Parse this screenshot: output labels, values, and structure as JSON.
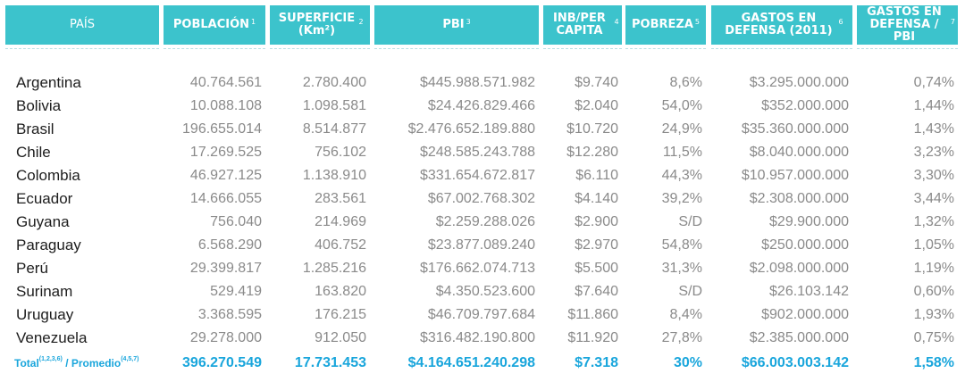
{
  "headers": [
    {
      "label": "PAÍS",
      "sup": ""
    },
    {
      "label": "POBLACIÓN",
      "sup": "1"
    },
    {
      "label": "SUPERFICIE (Km²)",
      "sup": "2"
    },
    {
      "label": "PBI",
      "sup": "3"
    },
    {
      "label": "INB/PER CAPITA",
      "sup": "4"
    },
    {
      "label": "POBREZA",
      "sup": "5"
    },
    {
      "label": "GASTOS EN DEFENSA (2011)",
      "sup": "6"
    },
    {
      "label": "GASTOS EN DEFENSA / PBI",
      "sup": "7"
    }
  ],
  "rows": [
    [
      "Argentina",
      "40.764.561",
      "2.780.400",
      "$445.988.571.982",
      "$9.740",
      "8,6%",
      "$3.295.000.000",
      "0,74%"
    ],
    [
      "Bolivia",
      "10.088.108",
      "1.098.581",
      "$24.426.829.466",
      "$2.040",
      "54,0%",
      "$352.000.000",
      "1,44%"
    ],
    [
      "Brasil",
      "196.655.014",
      "8.514.877",
      "$2.476.652.189.880",
      "$10.720",
      "24,9%",
      "$35.360.000.000",
      "1,43%"
    ],
    [
      "Chile",
      "17.269.525",
      "756.102",
      "$248.585.243.788",
      "$12.280",
      "11,5%",
      "$8.040.000.000",
      "3,23%"
    ],
    [
      "Colombia",
      "46.927.125",
      "1.138.910",
      "$331.654.672.817",
      "$6.110",
      "44,3%",
      "$10.957.000.000",
      "3,30%"
    ],
    [
      "Ecuador",
      "14.666.055",
      "283.561",
      "$67.002.768.302",
      "$4.140",
      "39,2%",
      "$2.308.000.000",
      "3,44%"
    ],
    [
      "Guyana",
      "756.040",
      "214.969",
      "$2.259.288.026",
      "$2.900",
      "S/D",
      "$29.900.000",
      "1,32%"
    ],
    [
      "Paraguay",
      "6.568.290",
      "406.752",
      "$23.877.089.240",
      "$2.970",
      "54,8%",
      "$250.000.000",
      "1,05%"
    ],
    [
      "Perú",
      "29.399.817",
      "1.285.216",
      "$176.662.074.713",
      "$5.500",
      "31,3%",
      "$2.098.000.000",
      "1,19%"
    ],
    [
      "Surinam",
      "529.419",
      "163.820",
      "$4.350.523.600",
      "$7.640",
      "S/D",
      "$26.103.142",
      "0,60%"
    ],
    [
      "Uruguay",
      "3.368.595",
      "176.215",
      "$46.709.797.684",
      "$11.860",
      "8,4%",
      "$902.000.000",
      "1,93%"
    ],
    [
      "Venezuela",
      "29.278.000",
      "912.050",
      "$316.482.190.800",
      "$11.920",
      "27,8%",
      "$2.385.000.000",
      "0,75%"
    ]
  ],
  "total": {
    "label_total": "Total",
    "sup_total": "(1,2,3,6)",
    "label_sep": " / ",
    "label_promedio": "Promedio",
    "sup_promedio": "(4,5,7)",
    "values": [
      "396.270.549",
      "17.731.453",
      "$4.164.651.240.298",
      "$7.318",
      "30%",
      "$66.003.003.142",
      "1,58%"
    ]
  },
  "colors": {
    "header_bg": "#3cc3cc",
    "header_text": "#ffffff",
    "country_text": "#1d1d1d",
    "value_text": "#8a8a8a",
    "total_text": "#1aa6dc"
  }
}
